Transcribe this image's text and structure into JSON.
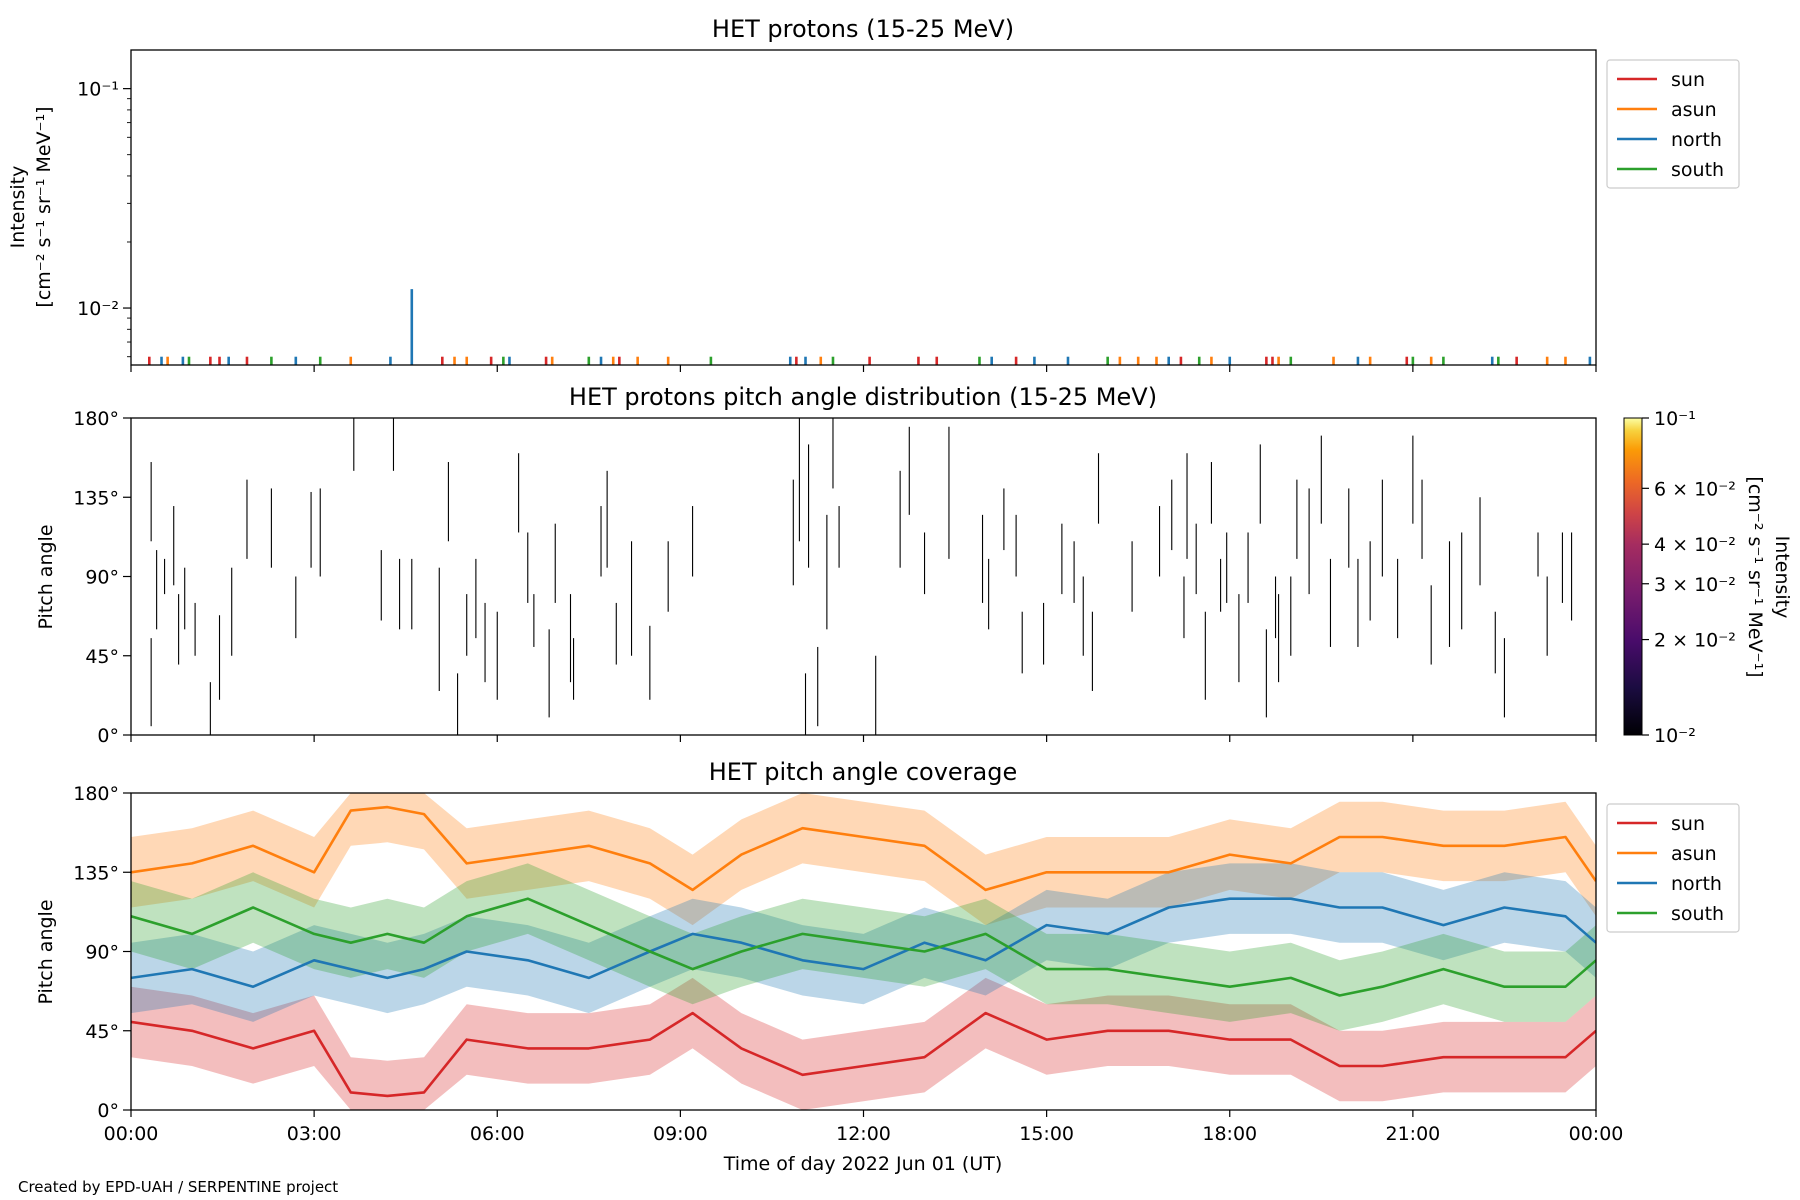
{
  "credit": "Created by EPD-UAH / SERPENTINE project",
  "colors": {
    "sun": "#d62728",
    "asun": "#ff7f0e",
    "north": "#1f77b4",
    "south": "#2ca02c"
  },
  "chart_data": [
    {
      "type": "line",
      "title": "HET protons (15-25 MeV)",
      "ylabel_line1": "Intensity",
      "ylabel_line2": "[cm⁻² s⁻¹ sr⁻¹ MeV⁻¹]",
      "yscale": "log",
      "ylim": [
        0.0055,
        0.15
      ],
      "yticks": [
        {
          "value": 0.1,
          "label": "10⁻¹"
        },
        {
          "value": 0.01,
          "label": "10⁻²"
        }
      ],
      "xlim": [
        0,
        24
      ],
      "legend": {
        "position": "outside-right",
        "entries": [
          "sun",
          "asun",
          "north",
          "south"
        ]
      },
      "baseline": 0.0055,
      "series": [
        {
          "name": "sun",
          "color": "#d62728",
          "spikes": [
            {
              "x": 0.3,
              "y": 0.006
            },
            {
              "x": 1.3,
              "y": 0.006
            },
            {
              "x": 1.45,
              "y": 0.006
            },
            {
              "x": 1.9,
              "y": 0.006
            },
            {
              "x": 5.1,
              "y": 0.006
            },
            {
              "x": 5.9,
              "y": 0.006
            },
            {
              "x": 6.8,
              "y": 0.006
            },
            {
              "x": 8.0,
              "y": 0.006
            },
            {
              "x": 10.9,
              "y": 0.006
            },
            {
              "x": 12.1,
              "y": 0.006
            },
            {
              "x": 12.9,
              "y": 0.006
            },
            {
              "x": 13.2,
              "y": 0.006
            },
            {
              "x": 14.5,
              "y": 0.006
            },
            {
              "x": 17.2,
              "y": 0.006
            },
            {
              "x": 18.6,
              "y": 0.006
            },
            {
              "x": 18.7,
              "y": 0.006
            },
            {
              "x": 20.9,
              "y": 0.006
            },
            {
              "x": 22.7,
              "y": 0.006
            }
          ]
        },
        {
          "name": "asun",
          "color": "#ff7f0e",
          "spikes": [
            {
              "x": 0.6,
              "y": 0.006
            },
            {
              "x": 3.6,
              "y": 0.006
            },
            {
              "x": 5.3,
              "y": 0.006
            },
            {
              "x": 5.5,
              "y": 0.006
            },
            {
              "x": 6.9,
              "y": 0.006
            },
            {
              "x": 7.9,
              "y": 0.006
            },
            {
              "x": 8.3,
              "y": 0.006
            },
            {
              "x": 8.8,
              "y": 0.006
            },
            {
              "x": 11.3,
              "y": 0.006
            },
            {
              "x": 16.2,
              "y": 0.006
            },
            {
              "x": 16.5,
              "y": 0.006
            },
            {
              "x": 16.8,
              "y": 0.006
            },
            {
              "x": 17.7,
              "y": 0.006
            },
            {
              "x": 18.8,
              "y": 0.006
            },
            {
              "x": 19.7,
              "y": 0.006
            },
            {
              "x": 20.3,
              "y": 0.006
            },
            {
              "x": 21.3,
              "y": 0.006
            },
            {
              "x": 23.2,
              "y": 0.006
            },
            {
              "x": 23.5,
              "y": 0.006
            }
          ]
        },
        {
          "name": "north",
          "color": "#1f77b4",
          "spikes": [
            {
              "x": 0.5,
              "y": 0.006
            },
            {
              "x": 0.85,
              "y": 0.006
            },
            {
              "x": 1.6,
              "y": 0.006
            },
            {
              "x": 2.7,
              "y": 0.006
            },
            {
              "x": 4.25,
              "y": 0.006
            },
            {
              "x": 4.6,
              "y": 0.0122
            },
            {
              "x": 6.2,
              "y": 0.006
            },
            {
              "x": 7.7,
              "y": 0.006
            },
            {
              "x": 10.8,
              "y": 0.006
            },
            {
              "x": 11.05,
              "y": 0.006
            },
            {
              "x": 14.1,
              "y": 0.006
            },
            {
              "x": 14.8,
              "y": 0.006
            },
            {
              "x": 15.35,
              "y": 0.006
            },
            {
              "x": 17.0,
              "y": 0.006
            },
            {
              "x": 18.0,
              "y": 0.006
            },
            {
              "x": 20.1,
              "y": 0.006
            },
            {
              "x": 22.3,
              "y": 0.006
            },
            {
              "x": 23.9,
              "y": 0.006
            }
          ]
        },
        {
          "name": "south",
          "color": "#2ca02c",
          "spikes": [
            {
              "x": 0.95,
              "y": 0.006
            },
            {
              "x": 2.3,
              "y": 0.006
            },
            {
              "x": 3.1,
              "y": 0.006
            },
            {
              "x": 6.1,
              "y": 0.006
            },
            {
              "x": 7.5,
              "y": 0.006
            },
            {
              "x": 9.5,
              "y": 0.006
            },
            {
              "x": 11.5,
              "y": 0.006
            },
            {
              "x": 13.9,
              "y": 0.006
            },
            {
              "x": 16.0,
              "y": 0.006
            },
            {
              "x": 17.5,
              "y": 0.006
            },
            {
              "x": 19.0,
              "y": 0.006
            },
            {
              "x": 21.0,
              "y": 0.006
            },
            {
              "x": 21.5,
              "y": 0.006
            },
            {
              "x": 22.4,
              "y": 0.006
            }
          ]
        }
      ]
    },
    {
      "type": "heatmap",
      "title": "HET protons pitch angle distribution (15-25 MeV)",
      "ylabel": "Pitch angle",
      "ylim": [
        0,
        180
      ],
      "yticks": [
        "0°",
        "45°",
        "90°",
        "135°",
        "180°"
      ],
      "xlim": [
        0,
        24
      ],
      "colorbar": {
        "label_line1": "Intensity",
        "label_line2": "[cm⁻² s⁻¹ sr⁻¹ MeV⁻¹]",
        "scale": "log",
        "range": [
          0.01,
          0.1
        ],
        "colormap": "inferno",
        "ticks": [
          {
            "value": 0.1,
            "label": "10⁻¹"
          },
          {
            "value": 0.06,
            "label": "6 × 10⁻²"
          },
          {
            "value": 0.04,
            "label": "4 × 10⁻²"
          },
          {
            "value": 0.03,
            "label": "3 × 10⁻²"
          },
          {
            "value": 0.02,
            "label": "2 × 10⁻²"
          },
          {
            "value": 0.01,
            "label": "10⁻²"
          }
        ]
      },
      "segments": [
        [
          0.33,
          5,
          55
        ],
        [
          0.33,
          110,
          155
        ],
        [
          0.42,
          60,
          105
        ],
        [
          0.55,
          80,
          100
        ],
        [
          0.7,
          85,
          130
        ],
        [
          0.78,
          40,
          80
        ],
        [
          0.88,
          60,
          95
        ],
        [
          1.05,
          45,
          75
        ],
        [
          1.3,
          0,
          30
        ],
        [
          1.45,
          20,
          68
        ],
        [
          1.65,
          45,
          95
        ],
        [
          1.9,
          100,
          145
        ],
        [
          2.3,
          95,
          140
        ],
        [
          2.7,
          55,
          90
        ],
        [
          2.95,
          95,
          138
        ],
        [
          3.1,
          90,
          140
        ],
        [
          3.65,
          150,
          180
        ],
        [
          4.1,
          65,
          105
        ],
        [
          4.3,
          150,
          180
        ],
        [
          4.4,
          60,
          100
        ],
        [
          4.6,
          60,
          100
        ],
        [
          5.05,
          25,
          95
        ],
        [
          5.2,
          110,
          155
        ],
        [
          5.35,
          0,
          35
        ],
        [
          5.5,
          45,
          80
        ],
        [
          5.65,
          55,
          100
        ],
        [
          5.8,
          30,
          75
        ],
        [
          6.0,
          20,
          70
        ],
        [
          6.35,
          115,
          160
        ],
        [
          6.5,
          75,
          115
        ],
        [
          6.6,
          50,
          80
        ],
        [
          6.85,
          10,
          60
        ],
        [
          6.95,
          75,
          120
        ],
        [
          7.2,
          30,
          80
        ],
        [
          7.25,
          20,
          55
        ],
        [
          7.7,
          90,
          130
        ],
        [
          7.8,
          95,
          150
        ],
        [
          7.95,
          40,
          75
        ],
        [
          8.2,
          45,
          110
        ],
        [
          8.5,
          20,
          62
        ],
        [
          8.8,
          70,
          110
        ],
        [
          9.2,
          90,
          130
        ],
        [
          10.85,
          85,
          145
        ],
        [
          10.95,
          110,
          180
        ],
        [
          11.05,
          0,
          35
        ],
        [
          11.1,
          95,
          165
        ],
        [
          11.25,
          5,
          50
        ],
        [
          11.4,
          60,
          125
        ],
        [
          11.5,
          140,
          180
        ],
        [
          11.6,
          95,
          130
        ],
        [
          12.2,
          0,
          45
        ],
        [
          12.6,
          95,
          150
        ],
        [
          12.75,
          125,
          175
        ],
        [
          13.0,
          80,
          115
        ],
        [
          13.4,
          100,
          175
        ],
        [
          13.95,
          75,
          125
        ],
        [
          14.05,
          60,
          100
        ],
        [
          14.3,
          105,
          140
        ],
        [
          14.5,
          90,
          125
        ],
        [
          14.6,
          35,
          70
        ],
        [
          14.95,
          40,
          75
        ],
        [
          15.25,
          80,
          120
        ],
        [
          15.45,
          75,
          110
        ],
        [
          15.6,
          45,
          90
        ],
        [
          15.75,
          25,
          70
        ],
        [
          15.85,
          120,
          160
        ],
        [
          16.4,
          70,
          110
        ],
        [
          16.85,
          90,
          130
        ],
        [
          17.05,
          105,
          145
        ],
        [
          17.25,
          55,
          90
        ],
        [
          17.3,
          100,
          160
        ],
        [
          17.45,
          80,
          120
        ],
        [
          17.6,
          20,
          70
        ],
        [
          17.7,
          120,
          155
        ],
        [
          17.85,
          70,
          100
        ],
        [
          17.95,
          75,
          115
        ],
        [
          18.15,
          30,
          80
        ],
        [
          18.3,
          75,
          115
        ],
        [
          18.5,
          120,
          165
        ],
        [
          18.6,
          10,
          60
        ],
        [
          18.75,
          55,
          90
        ],
        [
          18.8,
          30,
          80
        ],
        [
          19.0,
          45,
          90
        ],
        [
          19.1,
          100,
          145
        ],
        [
          19.3,
          80,
          140
        ],
        [
          19.5,
          120,
          170
        ],
        [
          19.65,
          50,
          100
        ],
        [
          19.95,
          95,
          140
        ],
        [
          20.1,
          50,
          100
        ],
        [
          20.3,
          65,
          110
        ],
        [
          20.5,
          90,
          145
        ],
        [
          20.75,
          55,
          100
        ],
        [
          21.0,
          120,
          170
        ],
        [
          21.15,
          100,
          145
        ],
        [
          21.3,
          40,
          85
        ],
        [
          21.6,
          50,
          110
        ],
        [
          21.8,
          60,
          115
        ],
        [
          22.1,
          85,
          135
        ],
        [
          22.35,
          35,
          70
        ],
        [
          22.5,
          10,
          55
        ],
        [
          23.05,
          90,
          115
        ],
        [
          23.2,
          45,
          90
        ],
        [
          23.45,
          75,
          115
        ],
        [
          23.6,
          65,
          115
        ]
      ]
    },
    {
      "type": "line",
      "title": "HET pitch angle coverage",
      "ylabel": "Pitch angle",
      "xlabel": "Time of day 2022 Jun 01 (UT)",
      "ylim": [
        0,
        180
      ],
      "yticks": [
        "0°",
        "45°",
        "90°",
        "135°",
        "180°"
      ],
      "xlim": [
        0,
        24
      ],
      "xticks": [
        "00:00",
        "03:00",
        "06:00",
        "09:00",
        "12:00",
        "15:00",
        "18:00",
        "21:00",
        "00:00"
      ],
      "legend": {
        "position": "outside-right",
        "entries": [
          "sun",
          "asun",
          "north",
          "south"
        ]
      },
      "band_halfwidth": 20,
      "series": [
        {
          "name": "sun",
          "color": "#d62728",
          "x": [
            0,
            1,
            2,
            3,
            3.6,
            4.2,
            4.8,
            5.5,
            6.5,
            7.5,
            8.5,
            9.2,
            10,
            11,
            12,
            13,
            14,
            15,
            16,
            17,
            18,
            19,
            19.8,
            20.5,
            21.5,
            22.5,
            23.5,
            24
          ],
          "y": [
            50,
            45,
            35,
            45,
            10,
            8,
            10,
            40,
            35,
            35,
            40,
            55,
            35,
            20,
            25,
            30,
            55,
            40,
            45,
            45,
            40,
            40,
            25,
            25,
            30,
            30,
            30,
            45
          ]
        },
        {
          "name": "asun",
          "color": "#ff7f0e",
          "x": [
            0,
            1,
            2,
            3,
            3.6,
            4.2,
            4.8,
            5.5,
            6.5,
            7.5,
            8.5,
            9.2,
            10,
            11,
            12,
            13,
            14,
            15,
            16,
            17,
            18,
            19,
            19.8,
            20.5,
            21.5,
            22.5,
            23.5,
            24
          ],
          "y": [
            135,
            140,
            150,
            135,
            170,
            172,
            168,
            140,
            145,
            150,
            140,
            125,
            145,
            160,
            155,
            150,
            125,
            135,
            135,
            135,
            145,
            140,
            155,
            155,
            150,
            150,
            155,
            130
          ]
        },
        {
          "name": "north",
          "color": "#1f77b4",
          "x": [
            0,
            1,
            2,
            3,
            3.6,
            4.2,
            4.8,
            5.5,
            6.5,
            7.5,
            8.5,
            9.2,
            10,
            11,
            12,
            13,
            14,
            15,
            16,
            17,
            18,
            19,
            19.8,
            20.5,
            21.5,
            22.5,
            23.5,
            24
          ],
          "y": [
            75,
            80,
            70,
            85,
            80,
            75,
            80,
            90,
            85,
            75,
            90,
            100,
            95,
            85,
            80,
            95,
            85,
            105,
            100,
            115,
            120,
            120,
            115,
            115,
            105,
            115,
            110,
            95
          ]
        },
        {
          "name": "south",
          "color": "#2ca02c",
          "x": [
            0,
            1,
            2,
            3,
            3.6,
            4.2,
            4.8,
            5.5,
            6.5,
            7.5,
            8.5,
            9.2,
            10,
            11,
            12,
            13,
            14,
            15,
            16,
            17,
            18,
            19,
            19.8,
            20.5,
            21.5,
            22.5,
            23.5,
            24
          ],
          "y": [
            110,
            100,
            115,
            100,
            95,
            100,
            95,
            110,
            120,
            105,
            90,
            80,
            90,
            100,
            95,
            90,
            100,
            80,
            80,
            75,
            70,
            75,
            65,
            70,
            80,
            70,
            70,
            85
          ]
        }
      ]
    }
  ]
}
